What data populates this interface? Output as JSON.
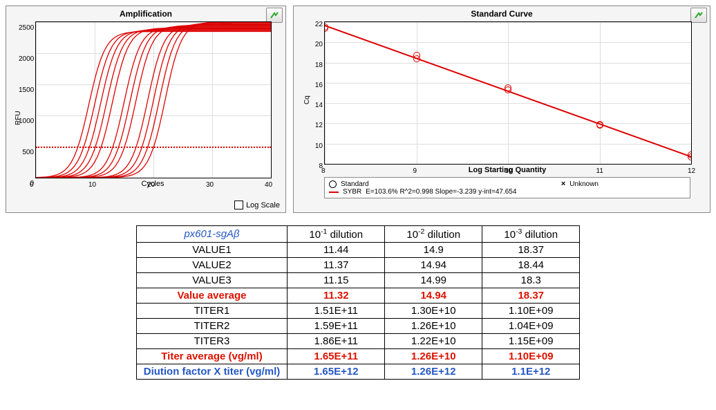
{
  "amplification": {
    "title": "Amplification",
    "y_label": "RFU",
    "x_label": "Cycles",
    "y_min": 0,
    "y_max": 2500,
    "y_step": 500,
    "x_min": 0,
    "x_max": 40,
    "x_step": 10,
    "line_color": "#d00",
    "threshold_rfu": 500,
    "background": "#ffffff",
    "grid_color": "#dddddd",
    "log_scale_label": "Log Scale",
    "log_scale_checked": false,
    "curves_midpoints": [
      9,
      10,
      11,
      12,
      13,
      15,
      16,
      17,
      19,
      20,
      21,
      22
    ],
    "curves_plateau_min": 2350,
    "curves_plateau_max": 2520
  },
  "standard_curve": {
    "title": "Standard Curve",
    "y_label": "Cq",
    "x_label": "Log Starting Quantity",
    "y_min": 8,
    "y_max": 22,
    "y_step": 2,
    "x_min": 8,
    "x_max": 12,
    "x_step": 1,
    "fit_color": "#d00",
    "point_color": "#d00",
    "background": "#ffffff",
    "grid_color": "#dddddd",
    "points": [
      {
        "x": 8,
        "y": 21.5
      },
      {
        "x": 8,
        "y": 21.4
      },
      {
        "x": 9,
        "y": 18.7
      },
      {
        "x": 9,
        "y": 18.4
      },
      {
        "x": 10,
        "y": 15.5
      },
      {
        "x": 10,
        "y": 15.3
      },
      {
        "x": 11,
        "y": 11.9
      },
      {
        "x": 11,
        "y": 11.8
      },
      {
        "x": 12,
        "y": 8.9
      },
      {
        "x": 12,
        "y": 8.7
      }
    ],
    "fit": {
      "slope": -3.239,
      "intercept": 47.654,
      "efficiency_pct": 103.6,
      "r2": 0.998
    },
    "legend": {
      "standard": "Standard",
      "unknown": "Unknown",
      "sybr_prefix": "SYBR",
      "sybr_text": "E=103.6% R^2=0.998 Slope=-3.239 y-int=47.654"
    }
  },
  "table": {
    "sample_name": "px601-sgAβ",
    "col_headers": [
      "10⁻¹ dilution",
      "10⁻² dilution",
      "10⁻³ dilution"
    ],
    "rows": [
      {
        "label": "VALUE1",
        "vals": [
          "11.44",
          "14.9",
          "18.37"
        ],
        "style": "plain"
      },
      {
        "label": "VALUE2",
        "vals": [
          "11.37",
          "14.94",
          "18.44"
        ],
        "style": "plain"
      },
      {
        "label": "VALUE3",
        "vals": [
          "11.15",
          "14.99",
          "18.3"
        ],
        "style": "plain"
      },
      {
        "label": "Value average",
        "vals": [
          "11.32",
          "14.94",
          "18.37"
        ],
        "style": "red"
      },
      {
        "label": "TITER1",
        "vals": [
          "1.51E+11",
          "1.30E+10",
          "1.10E+09"
        ],
        "style": "plain"
      },
      {
        "label": "TITER2",
        "vals": [
          "1.59E+11",
          "1.26E+10",
          "1.04E+09"
        ],
        "style": "plain"
      },
      {
        "label": "TITER3",
        "vals": [
          "1.86E+11",
          "1.22E+10",
          "1.15E+09"
        ],
        "style": "plain"
      },
      {
        "label": "Titer average (vg/ml)",
        "vals": [
          "1.65E+11",
          "1.26E+10",
          "1.10E+09"
        ],
        "style": "red"
      },
      {
        "label": "Diution factor X titer (vg/ml)",
        "vals": [
          "1.65E+12",
          "1.26E+12",
          "1.1E+12"
        ],
        "style": "blue"
      }
    ]
  },
  "export_icon_color": "#2fa92f"
}
